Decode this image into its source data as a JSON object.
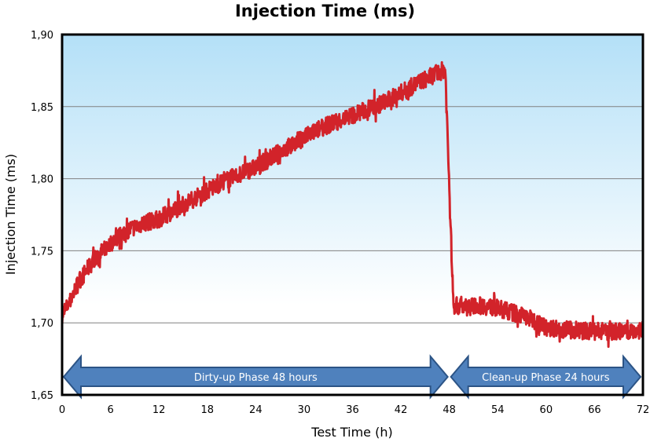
{
  "chart_data": {
    "type": "line",
    "title": "Injection Time (ms)",
    "xlabel": "Test Time (h)",
    "ylabel": "Injection Time (ms)",
    "xlim": [
      0,
      72
    ],
    "ylim": [
      1.65,
      1.9
    ],
    "xticks": [
      "0",
      "6",
      "12",
      "18",
      "24",
      "30",
      "36",
      "42",
      "48",
      "54",
      "60",
      "66",
      "72"
    ],
    "yticks": [
      "1,65",
      "1,70",
      "1,75",
      "1,80",
      "1,85",
      "1,90"
    ],
    "grid": "horizontal",
    "series": [
      {
        "color": "#d2232a",
        "x": [
          0,
          1,
          2,
          4,
          6,
          8,
          10,
          12,
          16,
          20,
          24,
          28,
          32,
          36,
          40,
          44,
          47.5,
          48.5,
          50,
          52,
          54,
          56,
          58,
          60,
          63,
          66,
          69,
          72
        ],
        "y": [
          1.705,
          1.715,
          1.728,
          1.744,
          1.755,
          1.764,
          1.769,
          1.772,
          1.785,
          1.798,
          1.808,
          1.822,
          1.835,
          1.844,
          1.853,
          1.866,
          1.876,
          1.712,
          1.711,
          1.712,
          1.71,
          1.707,
          1.703,
          1.697,
          1.695,
          1.694,
          1.694,
          1.695
        ]
      }
    ],
    "annotations": [
      {
        "label": "Dirty-up Phase 48 hours",
        "x_start": 0,
        "x_end": 48
      },
      {
        "label": "Clean-up Phase 24 hours",
        "x_start": 48,
        "x_end": 72
      }
    ],
    "colors": {
      "arrow_fill": "#4f81bd",
      "arrow_stroke": "#2c5486",
      "bg_top": "#b4e0f7",
      "bg_bottom": "#ffffff",
      "gridline": "#808080"
    }
  }
}
